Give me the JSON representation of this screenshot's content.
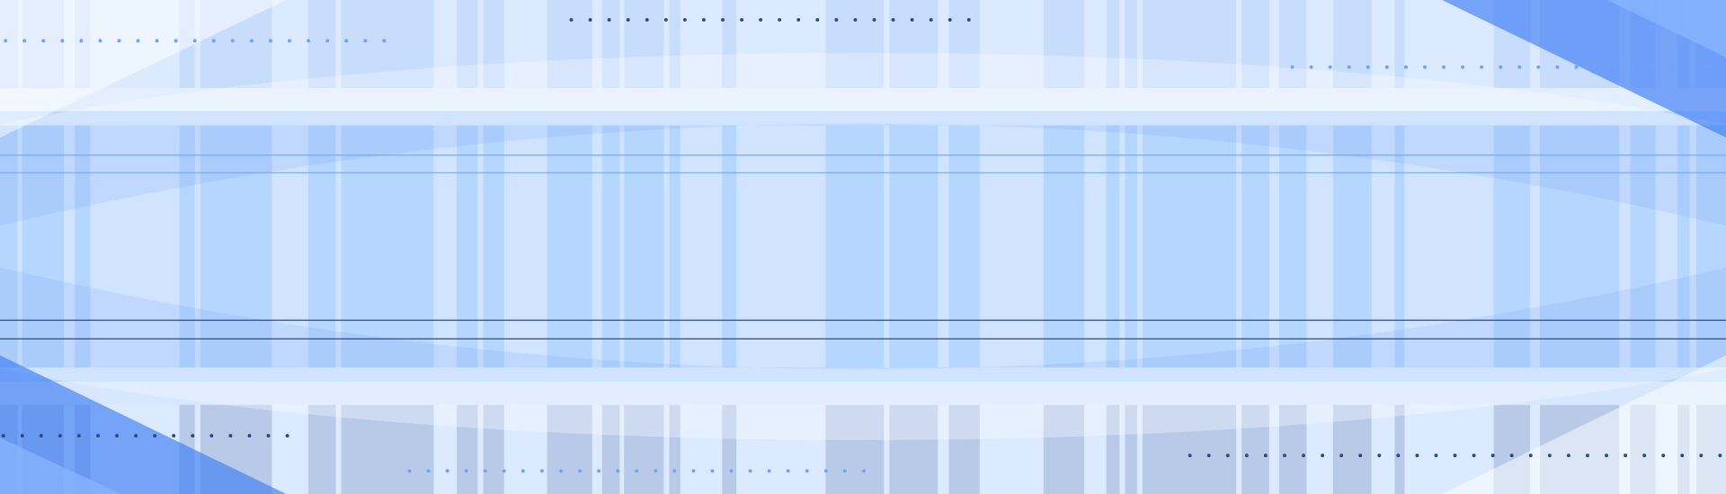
{
  "colors": {
    "band_light": "#dbeaff",
    "band_mid": "#bcd8ff",
    "bar_top": "#c8dcfc",
    "bar_mid": "#94c5ff",
    "bar_bottom": "#b8cae8",
    "accent_blue": "#3d7cf5",
    "line_light": "#7aa8e8",
    "line_dark": "#2c4a80",
    "dot_light": "#6aa4ff",
    "dot_dark": "#2c4a80"
  }
}
